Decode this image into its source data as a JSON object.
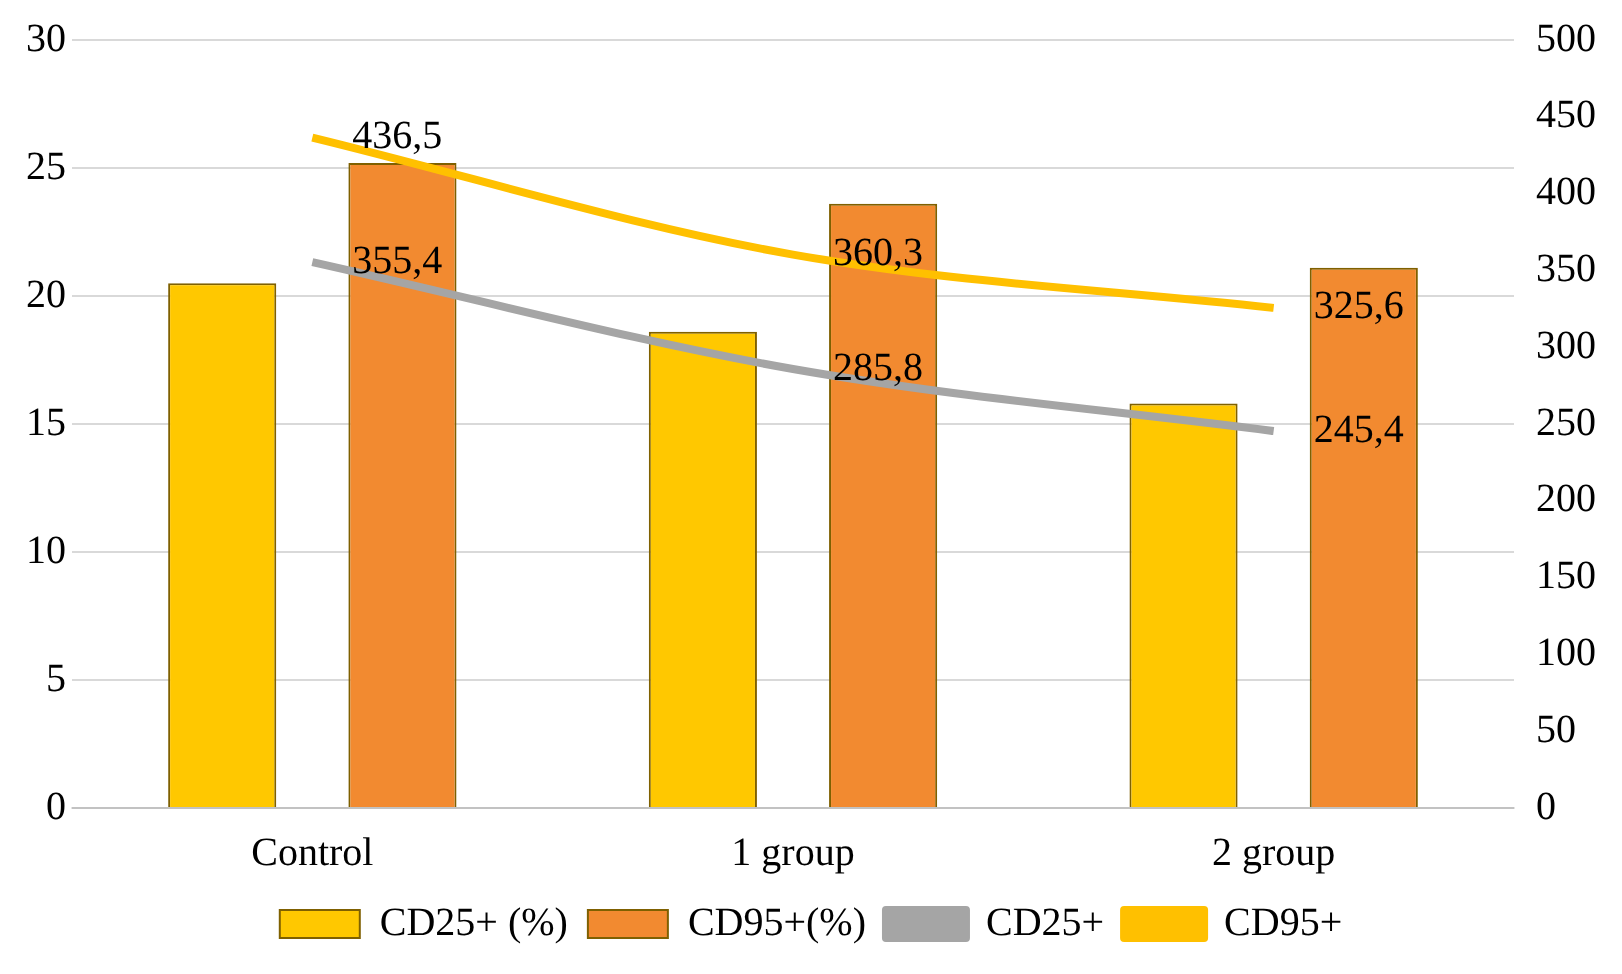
{
  "chart_data": {
    "type": "bar",
    "categories": [
      "Control",
      "1 group",
      "2 group"
    ],
    "series": [
      {
        "name": "CD25+ (%)",
        "color": "#ffc800",
        "values": [
          20.5,
          18.6,
          15.8
        ]
      },
      {
        "name": "CD95+(%)",
        "color": "#f28a30",
        "values": [
          25.2,
          23.6,
          21.1
        ]
      },
      {
        "name": "CD25+",
        "type": "line",
        "axis": "y2",
        "color": "#a5a5a5",
        "values": [
          355.4,
          285.8,
          245.4
        ],
        "value_labels": [
          "355,4",
          "285,8",
          "245,4"
        ]
      },
      {
        "name": "CD95+",
        "type": "line",
        "axis": "y2",
        "color": "#ffc000",
        "values": [
          436.5,
          360.3,
          325.6
        ],
        "value_labels": [
          "436,5",
          "360,3",
          "325,6"
        ]
      }
    ],
    "ylim": [
      0,
      30
    ],
    "yticks": [
      0,
      5,
      10,
      15,
      20,
      25,
      30
    ],
    "y2lim": [
      0,
      500
    ],
    "y2ticks": [
      0,
      50,
      100,
      150,
      200,
      250,
      300,
      350,
      400,
      450,
      500
    ],
    "grid": "y",
    "legend": "bottom",
    "marker": "none",
    "line_style": "solid"
  }
}
